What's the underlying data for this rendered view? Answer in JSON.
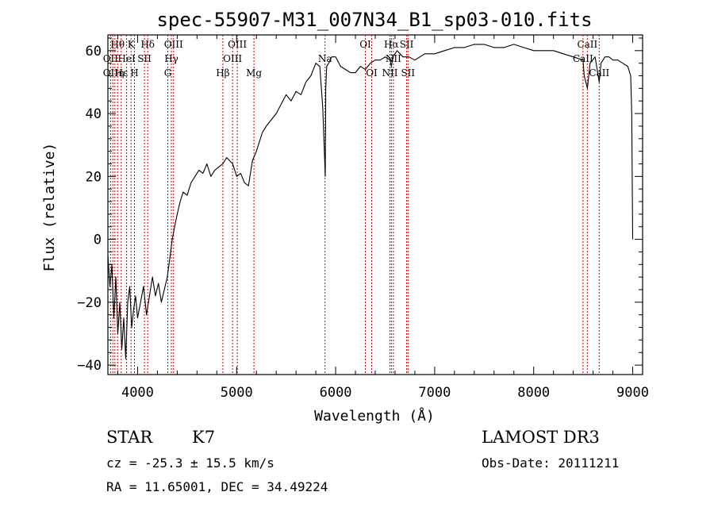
{
  "chart_data": {
    "type": "line",
    "title": "spec-55907-M31_007N34_B1_sp03-010.fits",
    "xlabel": "Wavelength (Å)",
    "ylabel": "Flux (relative)",
    "xlim": [
      3700,
      9100
    ],
    "ylim": [
      -43,
      65
    ],
    "xticks": [
      4000,
      5000,
      6000,
      7000,
      8000,
      9000
    ],
    "yticks": [
      -40,
      -20,
      0,
      20,
      40,
      60
    ],
    "grid": false,
    "series": [
      {
        "name": "flux",
        "x": [
          3700,
          3720,
          3740,
          3760,
          3780,
          3800,
          3820,
          3840,
          3860,
          3880,
          3900,
          3920,
          3940,
          3960,
          3980,
          4000,
          4030,
          4060,
          4090,
          4120,
          4150,
          4180,
          4210,
          4240,
          4270,
          4300,
          4330,
          4350,
          4380,
          4400,
          4430,
          4460,
          4500,
          4540,
          4580,
          4620,
          4660,
          4700,
          4740,
          4780,
          4820,
          4860,
          4900,
          4930,
          4960,
          5000,
          5040,
          5080,
          5120,
          5160,
          5200,
          5220,
          5260,
          5300,
          5350,
          5400,
          5450,
          5500,
          5550,
          5600,
          5650,
          5700,
          5750,
          5800,
          5840,
          5870,
          5895,
          5900,
          5910,
          5930,
          5960,
          6000,
          6050,
          6100,
          6150,
          6200,
          6250,
          6300,
          6350,
          6400,
          6450,
          6500,
          6550,
          6563,
          6580,
          6620,
          6680,
          6740,
          6800,
          6900,
          7000,
          7100,
          7200,
          7300,
          7400,
          7500,
          7600,
          7700,
          7800,
          7900,
          8000,
          8100,
          8200,
          8300,
          8400,
          8498,
          8510,
          8542,
          8570,
          8620,
          8662,
          8680,
          8720,
          8760,
          8800,
          8850,
          8900,
          8950,
          8980,
          8990,
          9000
        ],
        "y": [
          -5,
          -15,
          -8,
          -25,
          -12,
          -30,
          -20,
          -35,
          -25,
          -38,
          -20,
          -15,
          -28,
          -22,
          -18,
          -25,
          -20,
          -15,
          -24,
          -18,
          -12,
          -18,
          -14,
          -20,
          -16,
          -12,
          -5,
          0,
          5,
          8,
          12,
          15,
          14,
          18,
          20,
          22,
          21,
          24,
          20,
          22,
          23,
          24,
          26,
          25,
          24,
          20,
          21,
          18,
          17,
          25,
          28,
          30,
          34,
          36,
          38,
          40,
          43,
          46,
          44,
          47,
          46,
          50,
          52,
          56,
          55,
          42,
          20,
          48,
          55,
          56,
          58,
          58,
          55,
          54,
          53,
          53,
          55,
          54,
          56,
          57,
          57,
          58,
          57,
          55,
          58,
          60,
          58,
          58,
          57,
          59,
          59,
          60,
          61,
          61,
          62,
          62,
          61,
          61,
          62,
          61,
          60,
          60,
          60,
          59,
          58,
          57,
          52,
          48,
          56,
          58,
          50,
          56,
          58,
          58,
          57,
          57,
          56,
          55,
          52,
          40,
          0
        ]
      }
    ],
    "spectral_lines": [
      {
        "label": "Hθ",
        "x": 3798,
        "row": 1
      },
      {
        "label": "OII",
        "x": 3727,
        "row": 2
      },
      {
        "label": "OII",
        "x": 3727,
        "row": 3
      },
      {
        "label": "Hε",
        "x": 3835,
        "row": 3
      },
      {
        "label": "K",
        "x": 3934,
        "row": 1
      },
      {
        "label": "HeI",
        "x": 3889,
        "row": 2
      },
      {
        "label": "η",
        "x": 3835,
        "row": 3
      },
      {
        "label": "H",
        "x": 3968,
        "row": 3
      },
      {
        "label": "Hδ",
        "x": 4102,
        "row": 1
      },
      {
        "label": "SII",
        "x": 4069,
        "row": 2
      },
      {
        "label": "OIII",
        "x": 4363,
        "row": 1
      },
      {
        "label": "Hγ",
        "x": 4341,
        "row": 2
      },
      {
        "label": "G",
        "x": 4305,
        "row": 3
      },
      {
        "label": "OIII",
        "x": 5007,
        "row": 1
      },
      {
        "label": "OIII",
        "x": 4959,
        "row": 2
      },
      {
        "label": "Hβ",
        "x": 4861,
        "row": 3
      },
      {
        "label": "Mg",
        "x": 5175,
        "row": 3
      },
      {
        "label": "Na",
        "x": 5893,
        "row": 2
      },
      {
        "label": "OI",
        "x": 6300,
        "row": 1
      },
      {
        "label": "OI",
        "x": 6364,
        "row": 3
      },
      {
        "label": "Hα",
        "x": 6563,
        "row": 1
      },
      {
        "label": "SII",
        "x": 6717,
        "row": 1
      },
      {
        "label": "NII",
        "x": 6583,
        "row": 2
      },
      {
        "label": "NII",
        "x": 6548,
        "row": 3
      },
      {
        "label": "SII",
        "x": 6731,
        "row": 3
      },
      {
        "label": "CaII",
        "x": 8542,
        "row": 1
      },
      {
        "label": "CaII",
        "x": 8498,
        "row": 2
      },
      {
        "label": "CaII",
        "x": 8662,
        "row": 3
      }
    ],
    "line_markers_x": [
      3727,
      3750,
      3771,
      3798,
      3835,
      3889,
      3934,
      3968,
      4069,
      4102,
      4305,
      4341,
      4363,
      4861,
      4959,
      5007,
      5175,
      5893,
      6300,
      6364,
      6548,
      6563,
      6583,
      6717,
      6731,
      8498,
      8542,
      8662
    ]
  },
  "info": {
    "object_class": "STAR",
    "subclass": "K7",
    "survey": "LAMOST DR3",
    "cz": "cz = -25.3 ± 15.5 km/s",
    "obs_date": "Obs-Date: 20111211",
    "coords": "RA =  11.65001, DEC =  34.49224"
  },
  "colors": {
    "marker_line": "#cc0000",
    "spectrum": "#000000",
    "axis": "#000000"
  }
}
